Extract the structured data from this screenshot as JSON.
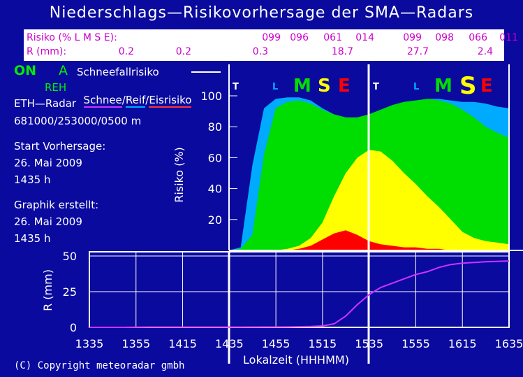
{
  "title": "Niederschlags—Risikovorhersage der SMA—Radars",
  "table": {
    "row1_label": "Risiko (% L M S E):",
    "row2_label": "R (mm):",
    "row1_values": [
      "099",
      "096",
      "061",
      "014",
      "099",
      "098",
      "066",
      "011"
    ],
    "row2_values": [
      "0.2",
      "0.2",
      "0.3",
      "18.7",
      "27.7",
      "2.4"
    ]
  },
  "status": {
    "on": "ON",
    "a": "A",
    "schneefall": "Schneefallrisiko",
    "reh": "REH",
    "schnee": "Schnee",
    "slash1": "/",
    "reif": "Reif",
    "slash2": "/",
    "eis": "Eisrisiko"
  },
  "info": {
    "radar": "ETH—Radar",
    "coords": "681000/253000/0500 m",
    "start_label": "Start Vorhersage:",
    "start_date": "26. Mai 2009",
    "start_time": "1435 h",
    "graph_label": "Graphik erstellt:",
    "graph_date": "26. Mai 2009",
    "graph_time": "1435 h"
  },
  "copyright": "(C) Copyright meteoradar gmbh",
  "colors": {
    "background": "#0a0a9e",
    "T": "#00aaff",
    "L": "#00dd00",
    "M": "#ffff00",
    "S": "#ff0000",
    "precip": "#cc33ff",
    "grid": "#ffffff",
    "plot_bg": "#0a0a9e"
  },
  "chart_data": [
    {
      "type": "area",
      "ylabel": "Risiko (%)",
      "ylim": [
        0,
        100
      ],
      "yticks": [
        20,
        40,
        60,
        80,
        100
      ],
      "xlim": [
        "1435",
        "1635"
      ],
      "panel_markers": [
        {
          "T": "T",
          "L": "L",
          "M": "M",
          "S": "S",
          "E": "E"
        },
        {
          "T": "T",
          "L": "L",
          "M": "M",
          "S": "S",
          "E": "E"
        }
      ],
      "x": [
        "1435",
        "1440",
        "1445",
        "1450",
        "1455",
        "1500",
        "1505",
        "1510",
        "1515",
        "1520",
        "1525",
        "1530",
        "1535",
        "1540",
        "1545",
        "1550",
        "1555",
        "1600",
        "1605",
        "1610",
        "1615",
        "1620",
        "1625",
        "1630",
        "1635"
      ],
      "series": [
        {
          "name": "T",
          "values": [
            0,
            2,
            55,
            92,
            98,
            99,
            99,
            97,
            92,
            88,
            86,
            86,
            88,
            91,
            94,
            96,
            97,
            98,
            98,
            97,
            96,
            96,
            95,
            93,
            92
          ]
        },
        {
          "name": "L",
          "values": [
            0,
            1,
            10,
            62,
            92,
            96,
            97,
            95,
            91,
            88,
            86,
            86,
            88,
            91,
            94,
            96,
            97,
            98,
            97,
            95,
            91,
            86,
            80,
            76,
            73
          ]
        },
        {
          "name": "M",
          "values": [
            0,
            0,
            0,
            0,
            0,
            1,
            3,
            8,
            18,
            35,
            50,
            60,
            65,
            64,
            58,
            50,
            43,
            35,
            28,
            20,
            12,
            8,
            6,
            5,
            4
          ]
        },
        {
          "name": "S",
          "values": [
            0,
            0,
            0,
            0,
            0,
            0,
            1,
            3,
            7,
            11,
            13,
            10,
            6,
            4,
            3,
            2,
            2,
            1,
            1,
            0,
            0,
            0,
            0,
            0,
            0
          ]
        }
      ]
    },
    {
      "type": "line",
      "xlabel": "Lokalzeit (HHHMM)",
      "ylabel": "R (mm)",
      "ylim": [
        0,
        50
      ],
      "yticks": [
        0,
        25,
        50
      ],
      "xticks": [
        "1335",
        "1355",
        "1415",
        "1435",
        "1455",
        "1515",
        "1535",
        "1555",
        "1615",
        "1635"
      ],
      "series": [
        {
          "x": [
            1335,
            1350,
            1400,
            1420,
            1440,
            1500,
            1510,
            1515,
            1520,
            1525,
            1530,
            1535,
            1540,
            1545,
            1550,
            1555,
            1600,
            1605,
            1610,
            1615,
            1625,
            1635
          ],
          "values": [
            0,
            0,
            0.2,
            0.2,
            0.2,
            0.3,
            0.6,
            1,
            2.5,
            8,
            16,
            23,
            28,
            31,
            34,
            37,
            39,
            42,
            44,
            45,
            46,
            46.5
          ]
        }
      ]
    }
  ]
}
